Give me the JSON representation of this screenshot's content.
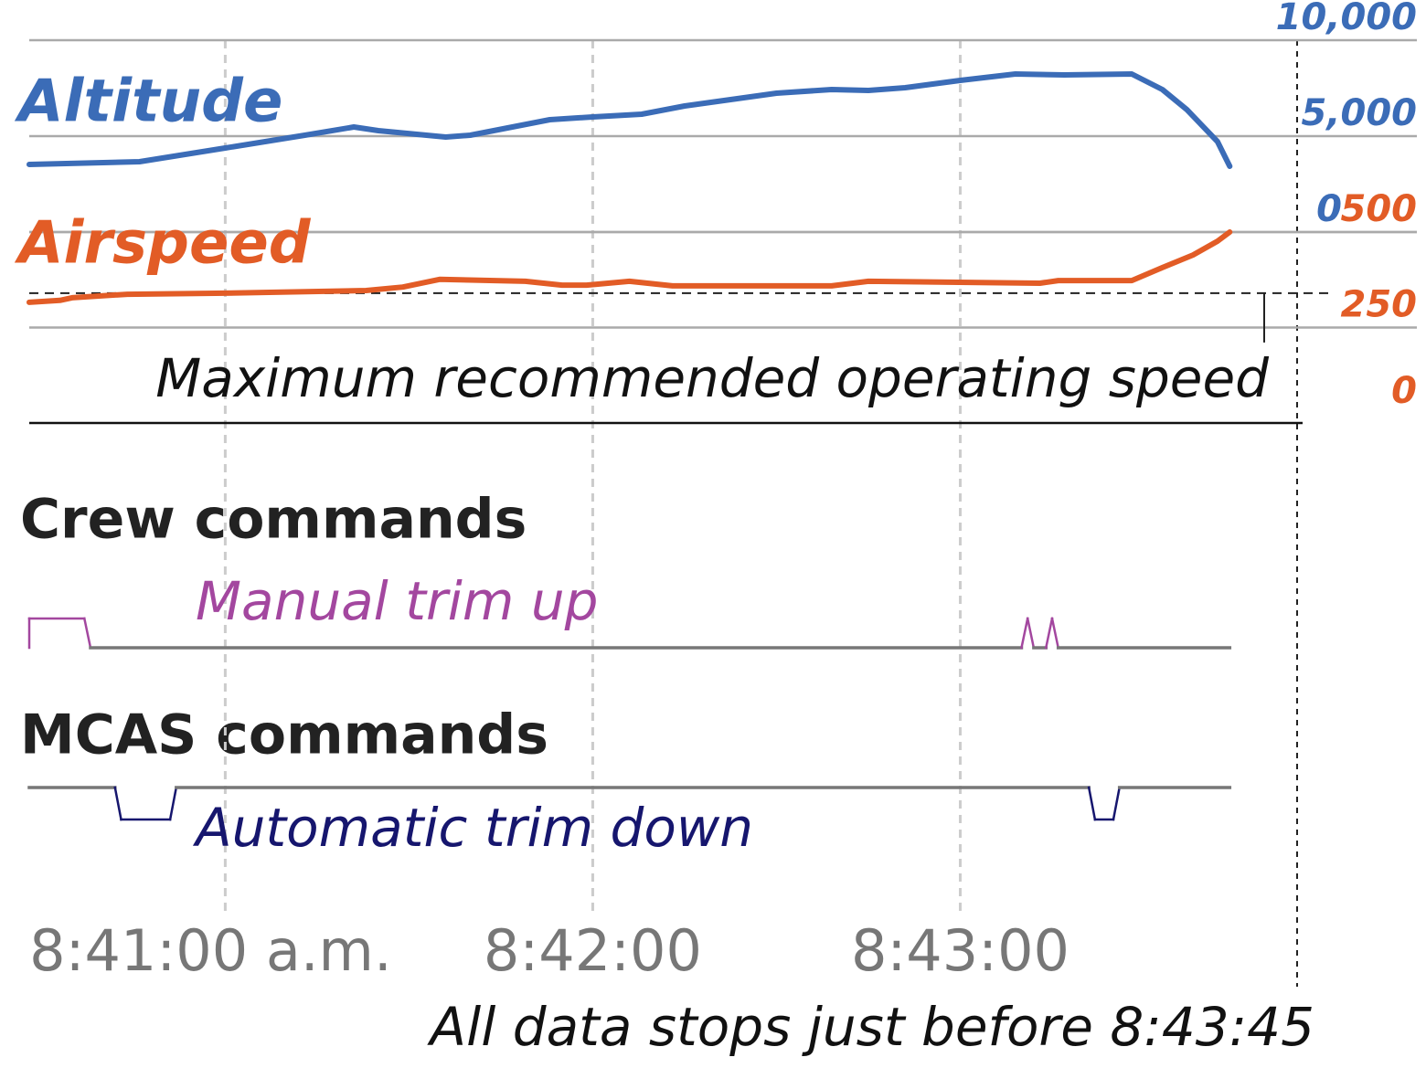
{
  "chart_data": [
    {
      "type": "line",
      "x": [
        "8:40:28",
        "8:40:46",
        "8:41:00",
        "8:41:13",
        "8:41:21",
        "8:41:25",
        "8:41:36",
        "8:41:40",
        "8:41:53",
        "8:42:00",
        "8:42:08",
        "8:42:15",
        "8:42:30",
        "8:42:39",
        "8:42:45",
        "8:42:51",
        "8:43:00",
        "8:43:09",
        "8:43:17",
        "8:43:28",
        "8:43:33",
        "8:43:37",
        "8:43:42",
        "8:43:44"
      ],
      "series": [
        {
          "name": "Altitude",
          "color": "#3b6cb7",
          "values": [
            3524,
            3667,
            4381,
            5048,
            5476,
            5286,
            4952,
            5048,
            5857,
            6000,
            6143,
            6571,
            7238,
            7429,
            7381,
            7524,
            7905,
            8238,
            8190,
            8238,
            7429,
            6381,
            4714,
            3429
          ]
        }
      ],
      "ylim": [
        0,
        10000
      ],
      "yticks": [
        0,
        {
          "value": 5000,
          "label": "5,000"
        },
        {
          "value": 10000,
          "label": "10,000"
        }
      ],
      "xlim": [
        "8:40:28",
        "8:43:55"
      ],
      "xticks": [
        {
          "value": "8:41:00",
          "label": "8:41:00 a.m."
        },
        "8:42:00",
        "8:43:00"
      ],
      "grid": true,
      "annotation": "All data stops just before 8:43:45"
    },
    {
      "type": "line",
      "x": [
        "8:40:28",
        "8:40:33",
        "8:40:35",
        "8:40:44",
        "8:41:00",
        "8:41:23",
        "8:41:29",
        "8:41:35",
        "8:41:49",
        "8:41:55",
        "8:41:59",
        "8:42:06",
        "8:42:13",
        "8:42:39",
        "8:42:45",
        "8:43:13",
        "8:43:16",
        "8:43:28",
        "8:43:33",
        "8:43:38",
        "8:43:42",
        "8:43:44"
      ],
      "series": [
        {
          "name": "Airspeed",
          "color": "#e25c26",
          "values": [
            316,
            321,
            328,
            337,
            340,
            347,
            356,
            376,
            371,
            361,
            361,
            371,
            359,
            359,
            371,
            366,
            373,
            373,
            407,
            440,
            476,
            500
          ]
        }
      ],
      "ylim": [
        0,
        500
      ],
      "yticks": [
        0,
        250,
        500
      ],
      "threshold": {
        "value": 340,
        "label": "Maximum recommended operating speed"
      }
    },
    {
      "type": "step",
      "title": "Crew commands",
      "x": [
        "8:40:28",
        "8:40:28",
        "8:40:37",
        "8:40:38",
        "8:43:10",
        "8:43:11",
        "8:43:12",
        "8:43:14",
        "8:43:15",
        "8:43:16",
        "8:43:44"
      ],
      "series": [
        {
          "name": "Manual trim up",
          "color": "#a3479f",
          "values": [
            0,
            1,
            1,
            0,
            0,
            1,
            0,
            0,
            1,
            0,
            0
          ]
        }
      ],
      "ylim": [
        0,
        1
      ]
    },
    {
      "type": "step",
      "title": "MCAS commands",
      "x": [
        "8:40:28",
        "8:40:42",
        "8:40:43",
        "8:40:51",
        "8:40:52",
        "8:43:21",
        "8:43:22",
        "8:43:25",
        "8:43:26",
        "8:43:44"
      ],
      "series": [
        {
          "name": "Automatic trim down",
          "color": "#16166e",
          "values": [
            0,
            0,
            1,
            1,
            0,
            0,
            1,
            1,
            0,
            0
          ]
        }
      ],
      "ylim": [
        1,
        0
      ]
    }
  ]
}
